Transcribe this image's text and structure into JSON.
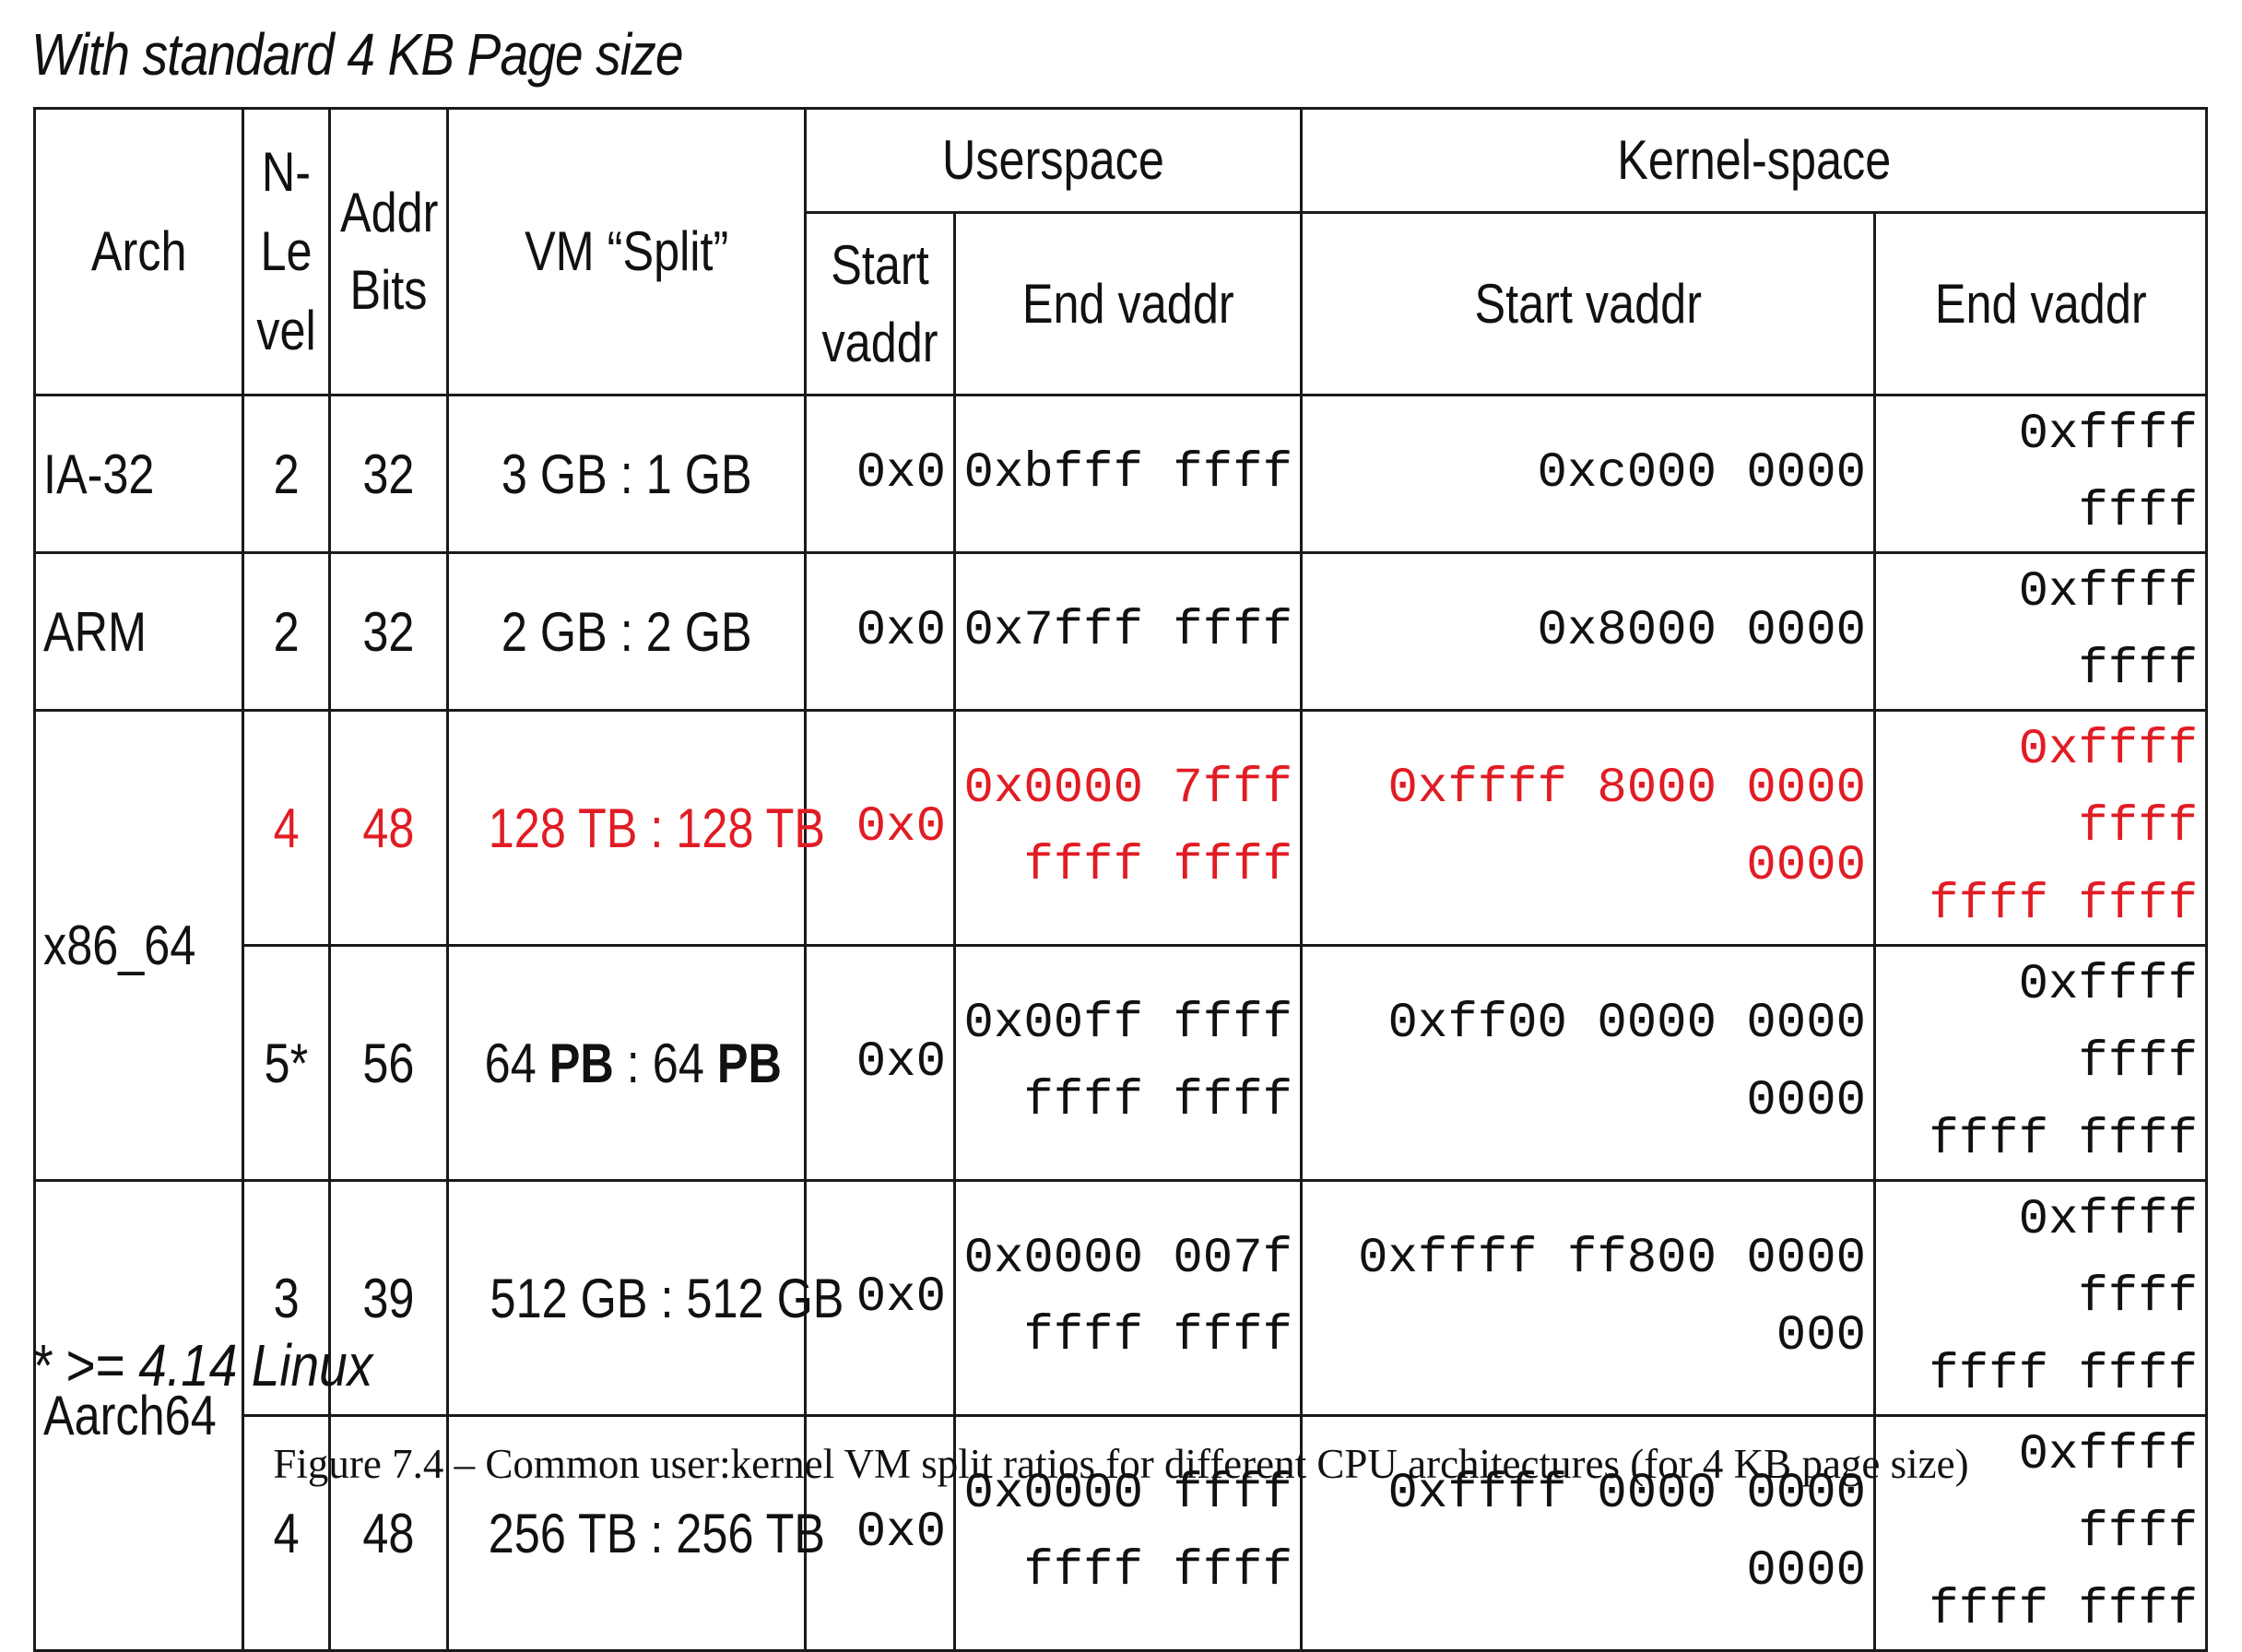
{
  "heading": "With standard 4 KB Page size",
  "headers": {
    "arch": "Arch",
    "nlevel": [
      "N-",
      "Le",
      "vel"
    ],
    "addr_bits": [
      "Addr",
      "Bits"
    ],
    "vm_split": "VM “Split”",
    "userspace": "Userspace",
    "kernelspace": "Kernel-space",
    "user_start": [
      "Start",
      "vaddr"
    ],
    "user_end": "End vaddr",
    "kernel_start": "Start vaddr",
    "kernel_end": "End vaddr"
  },
  "rows": [
    {
      "arch": "IA-32",
      "nlevel": "2",
      "bits": "32",
      "split": {
        "left": "3 GB",
        "sep": " : ",
        "right": "1 GB"
      },
      "user_start": "0x0",
      "user_end": [
        "0xbfff ffff"
      ],
      "kernel_start": "0xc000 0000",
      "kernel_end": [
        "0xffff ffff"
      ],
      "highlight": false
    },
    {
      "arch": "ARM",
      "nlevel": "2",
      "bits": "32",
      "split": {
        "left": "2 GB",
        "sep": " : ",
        "right": "2 GB"
      },
      "user_start": "0x0",
      "user_end": [
        "0x7fff ffff"
      ],
      "kernel_start": "0x8000 0000",
      "kernel_end": [
        "0xffff ffff"
      ],
      "highlight": false
    },
    {
      "arch": "x86_64",
      "nlevel": "4",
      "bits": "48",
      "split": {
        "left": "128 TB",
        "sep": " : ",
        "right": "128 TB"
      },
      "user_start": "0x0",
      "user_end": [
        "0x0000 7fff",
        "ffff ffff"
      ],
      "kernel_start": "0xffff 8000 0000 0000",
      "kernel_end": [
        "0xffff ffff",
        "ffff ffff"
      ],
      "highlight": true
    },
    {
      "arch": "x86_64",
      "nlevel": "5*",
      "bits": "56",
      "split": {
        "left_num": "64 ",
        "left_unit": "PB",
        "sep": " : ",
        "right_num": "64 ",
        "right_unit": "PB"
      },
      "user_start": "0x0",
      "user_end": [
        "0x00ff ffff",
        "ffff ffff"
      ],
      "kernel_start": "0xff00 0000 0000 0000",
      "kernel_end": [
        "0xffff ffff",
        "ffff ffff"
      ],
      "highlight": false
    },
    {
      "arch": "Aarch64",
      "nlevel": "3",
      "bits": "39",
      "split": {
        "left": "512 GB",
        "sep": " : ",
        "right": "512 GB"
      },
      "user_start": "0x0",
      "user_end": [
        "0x0000 007f",
        "ffff ffff"
      ],
      "kernel_start": "0xffff ff800 0000 000",
      "kernel_end": [
        "0xffff ffff",
        "ffff ffff"
      ],
      "highlight": false
    },
    {
      "arch": "Aarch64",
      "nlevel": "4",
      "bits": "48",
      "split": {
        "left": "256 TB",
        "sep": " : ",
        "right": "256 TB"
      },
      "user_start": "0x0",
      "user_end": [
        "0x0000 ffff",
        "ffff ffff"
      ],
      "kernel_start": "0xffff 0000 0000 0000",
      "kernel_end": [
        "0xffff ffff",
        "ffff ffff"
      ],
      "highlight": false
    }
  ],
  "footnote": "* >= 4.14 Linux",
  "caption": "Figure 7.4 – Common user:kernel VM split ratios for different CPU architectures (for 4 KB page size)",
  "colors": {
    "highlight": "#e11c24",
    "border": "#1a1a1a"
  }
}
